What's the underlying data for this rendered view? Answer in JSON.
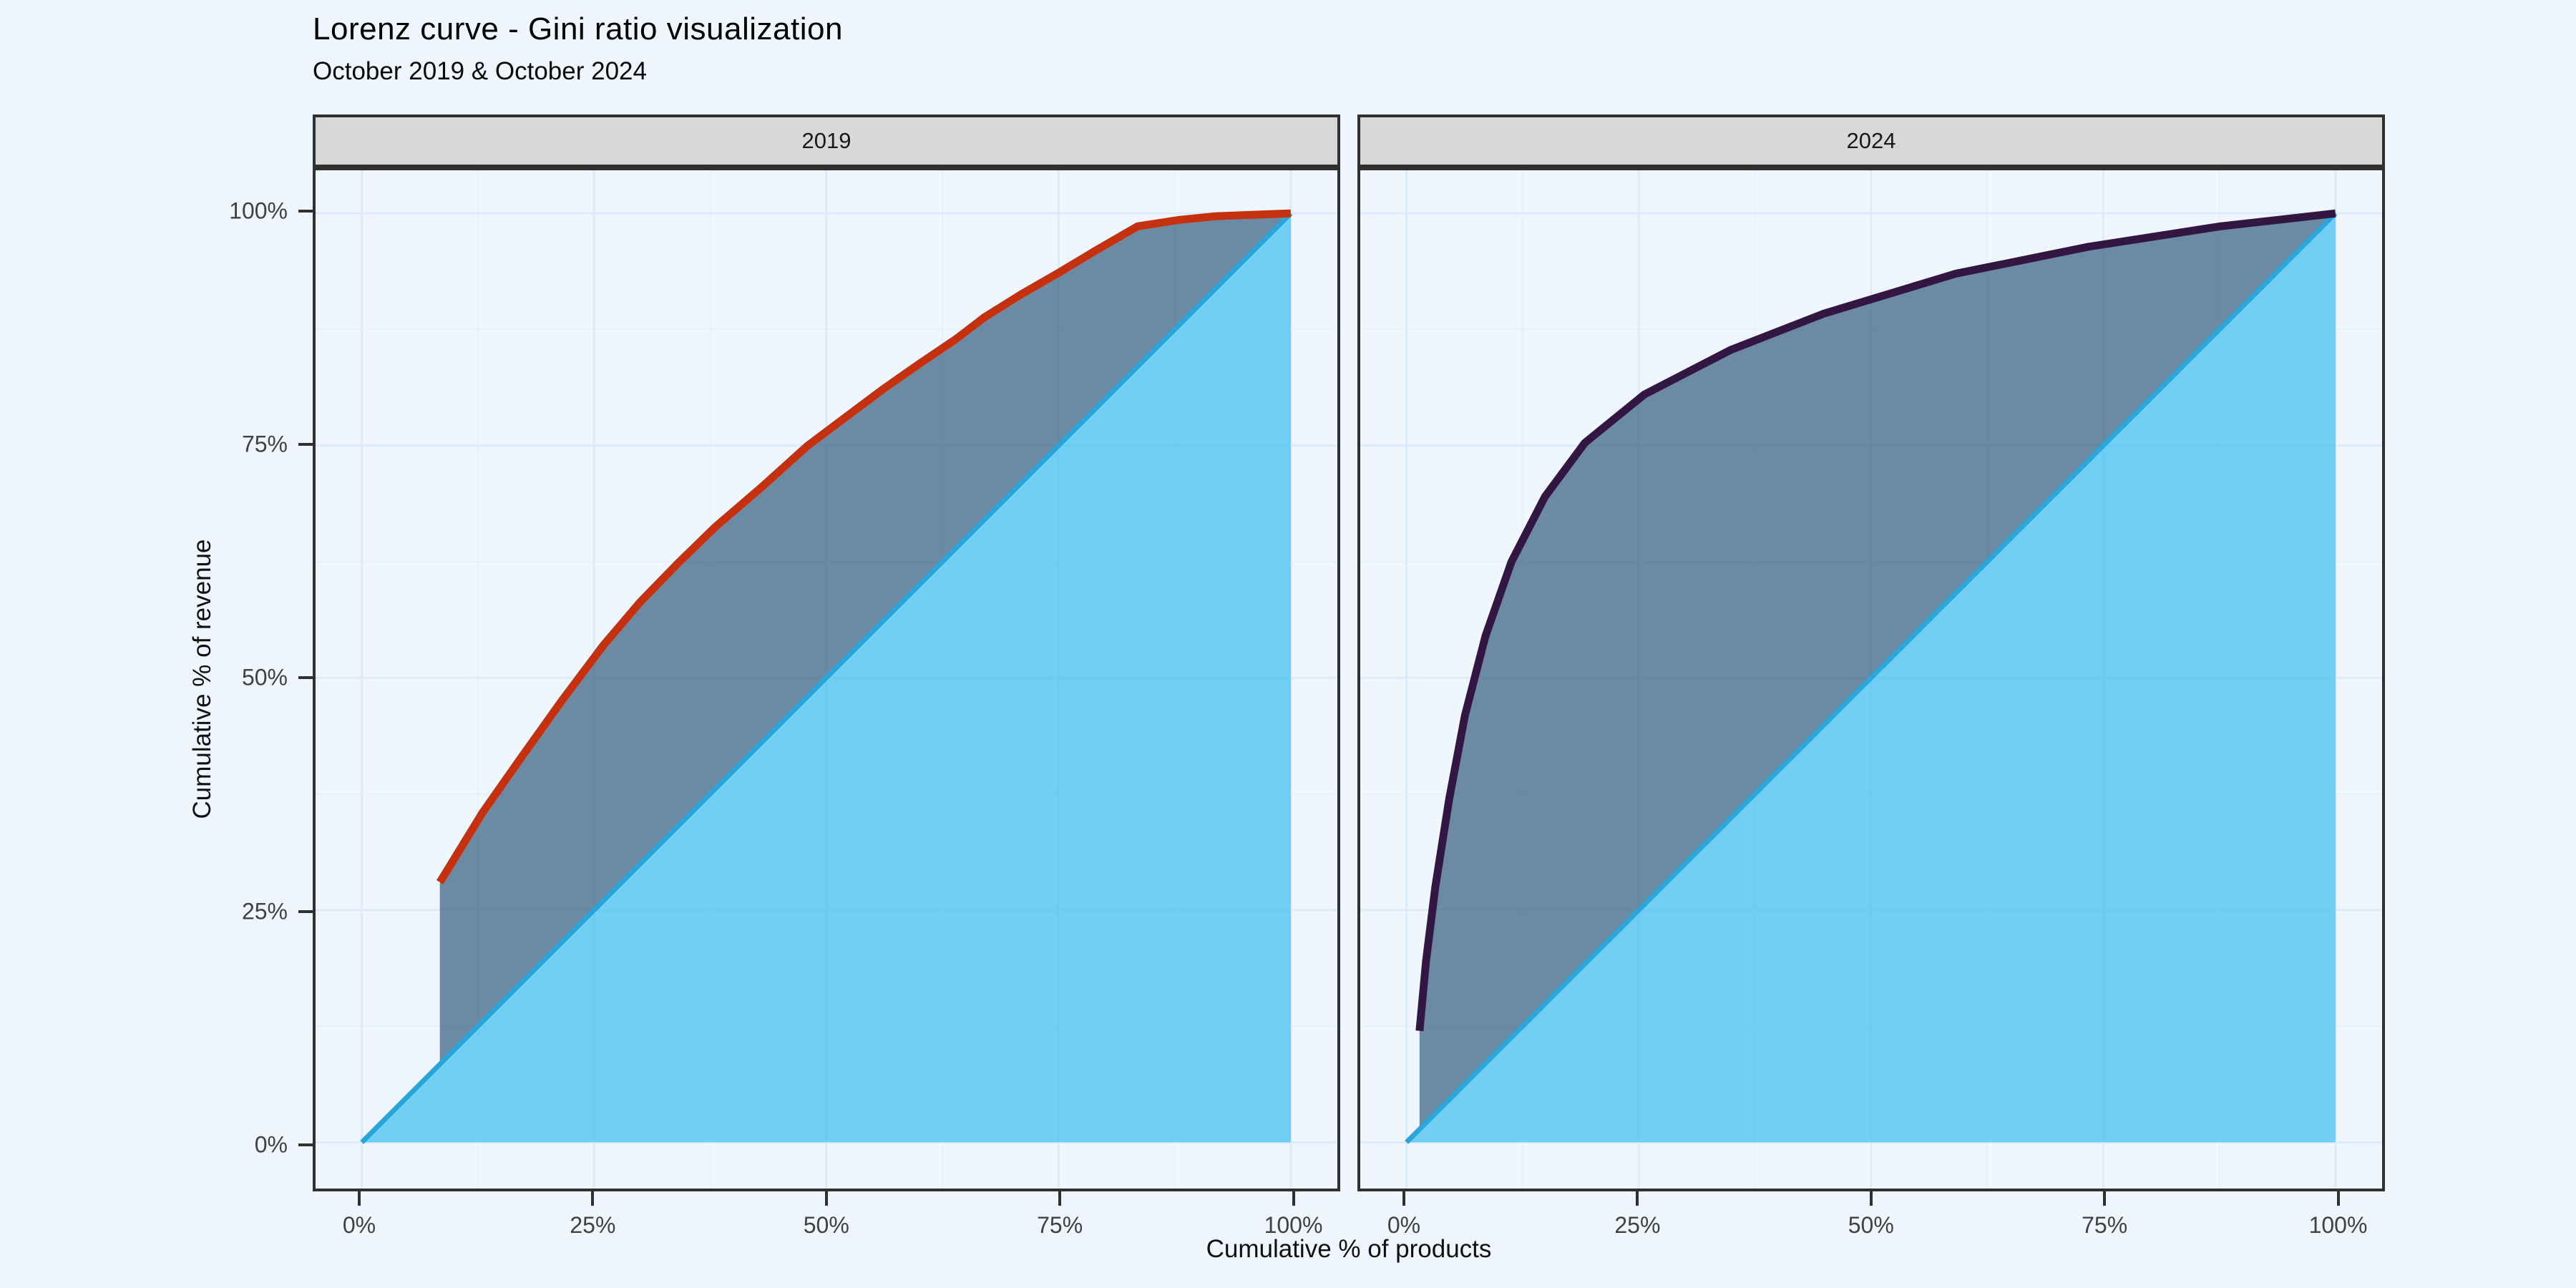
{
  "title": "Lorenz curve - Gini ratio visualization",
  "subtitle": "October 2019 & October 2024",
  "axes": {
    "x_title": "Cumulative % of products",
    "y_title": "Cumulative % of revenue",
    "x_ticks": [
      "0%",
      "25%",
      "50%",
      "75%",
      "100%"
    ],
    "y_ticks": [
      "100%",
      "75%",
      "50%",
      "25%",
      "0%"
    ]
  },
  "colors": {
    "background": "#EFF5FC",
    "panel_background": "#F0F6FD",
    "grid_major": "#DCEBF9",
    "grid_minor": "#E6F0FB",
    "strip_background": "#D8D8D8",
    "border": "#303030",
    "tick_text": "#414141",
    "equality_line": "#2AA5DC",
    "equality_area_fill": "rgba(62,191,239,0.72)",
    "gini_gap_fill": "rgba(55,95,128,0.72)",
    "lorenz_2019": "#C5300E",
    "lorenz_2024": "#321742"
  },
  "chart_data": [
    {
      "type": "line",
      "facet": "2019",
      "xlabel": "Cumulative % of products",
      "ylabel": "Cumulative % of revenue",
      "xlim": [
        0,
        100
      ],
      "ylim": [
        0,
        100
      ],
      "grid": true,
      "line_color": "#C5300E",
      "series": [
        {
          "name": "Lorenz curve 2019",
          "points": [
            [
              8.4,
              28
            ],
            [
              13,
              35.5
            ],
            [
              17,
              41.2
            ],
            [
              21.5,
              47.5
            ],
            [
              26,
              53.5
            ],
            [
              30,
              58.2
            ],
            [
              34,
              62.3
            ],
            [
              38,
              66.2
            ],
            [
              43,
              70.5
            ],
            [
              48,
              75
            ],
            [
              52,
              78
            ],
            [
              56,
              81
            ],
            [
              60,
              83.8
            ],
            [
              64,
              86.5
            ],
            [
              67,
              88.8
            ],
            [
              71,
              91.3
            ],
            [
              75,
              93.6
            ],
            [
              79,
              96
            ],
            [
              83.5,
              98.6
            ],
            [
              88,
              99.3
            ],
            [
              92,
              99.7
            ],
            [
              100,
              100
            ]
          ]
        },
        {
          "name": "Line of equality",
          "points": [
            [
              0,
              0
            ],
            [
              100,
              100
            ]
          ]
        }
      ]
    },
    {
      "type": "line",
      "facet": "2024",
      "xlabel": "Cumulative % of products",
      "ylabel": "Cumulative % of revenue",
      "xlim": [
        0,
        100
      ],
      "ylim": [
        0,
        100
      ],
      "grid": true,
      "line_color": "#321742",
      "series": [
        {
          "name": "Lorenz curve 2024",
          "points": [
            [
              1.4,
              12
            ],
            [
              2.1,
              19.5
            ],
            [
              3.1,
              27.5
            ],
            [
              4.6,
              37
            ],
            [
              6.3,
              46
            ],
            [
              8.5,
              54.5
            ],
            [
              11.3,
              62.5
            ],
            [
              14.9,
              69.5
            ],
            [
              19.2,
              75.3
            ],
            [
              25.6,
              80.5
            ],
            [
              34.9,
              85.3
            ],
            [
              44.9,
              89.2
            ],
            [
              59.1,
              93.5
            ],
            [
              73.4,
              96.4
            ],
            [
              87.6,
              98.6
            ],
            [
              100,
              100
            ]
          ]
        },
        {
          "name": "Line of equality",
          "points": [
            [
              0,
              0
            ],
            [
              100,
              100
            ]
          ]
        }
      ]
    }
  ]
}
